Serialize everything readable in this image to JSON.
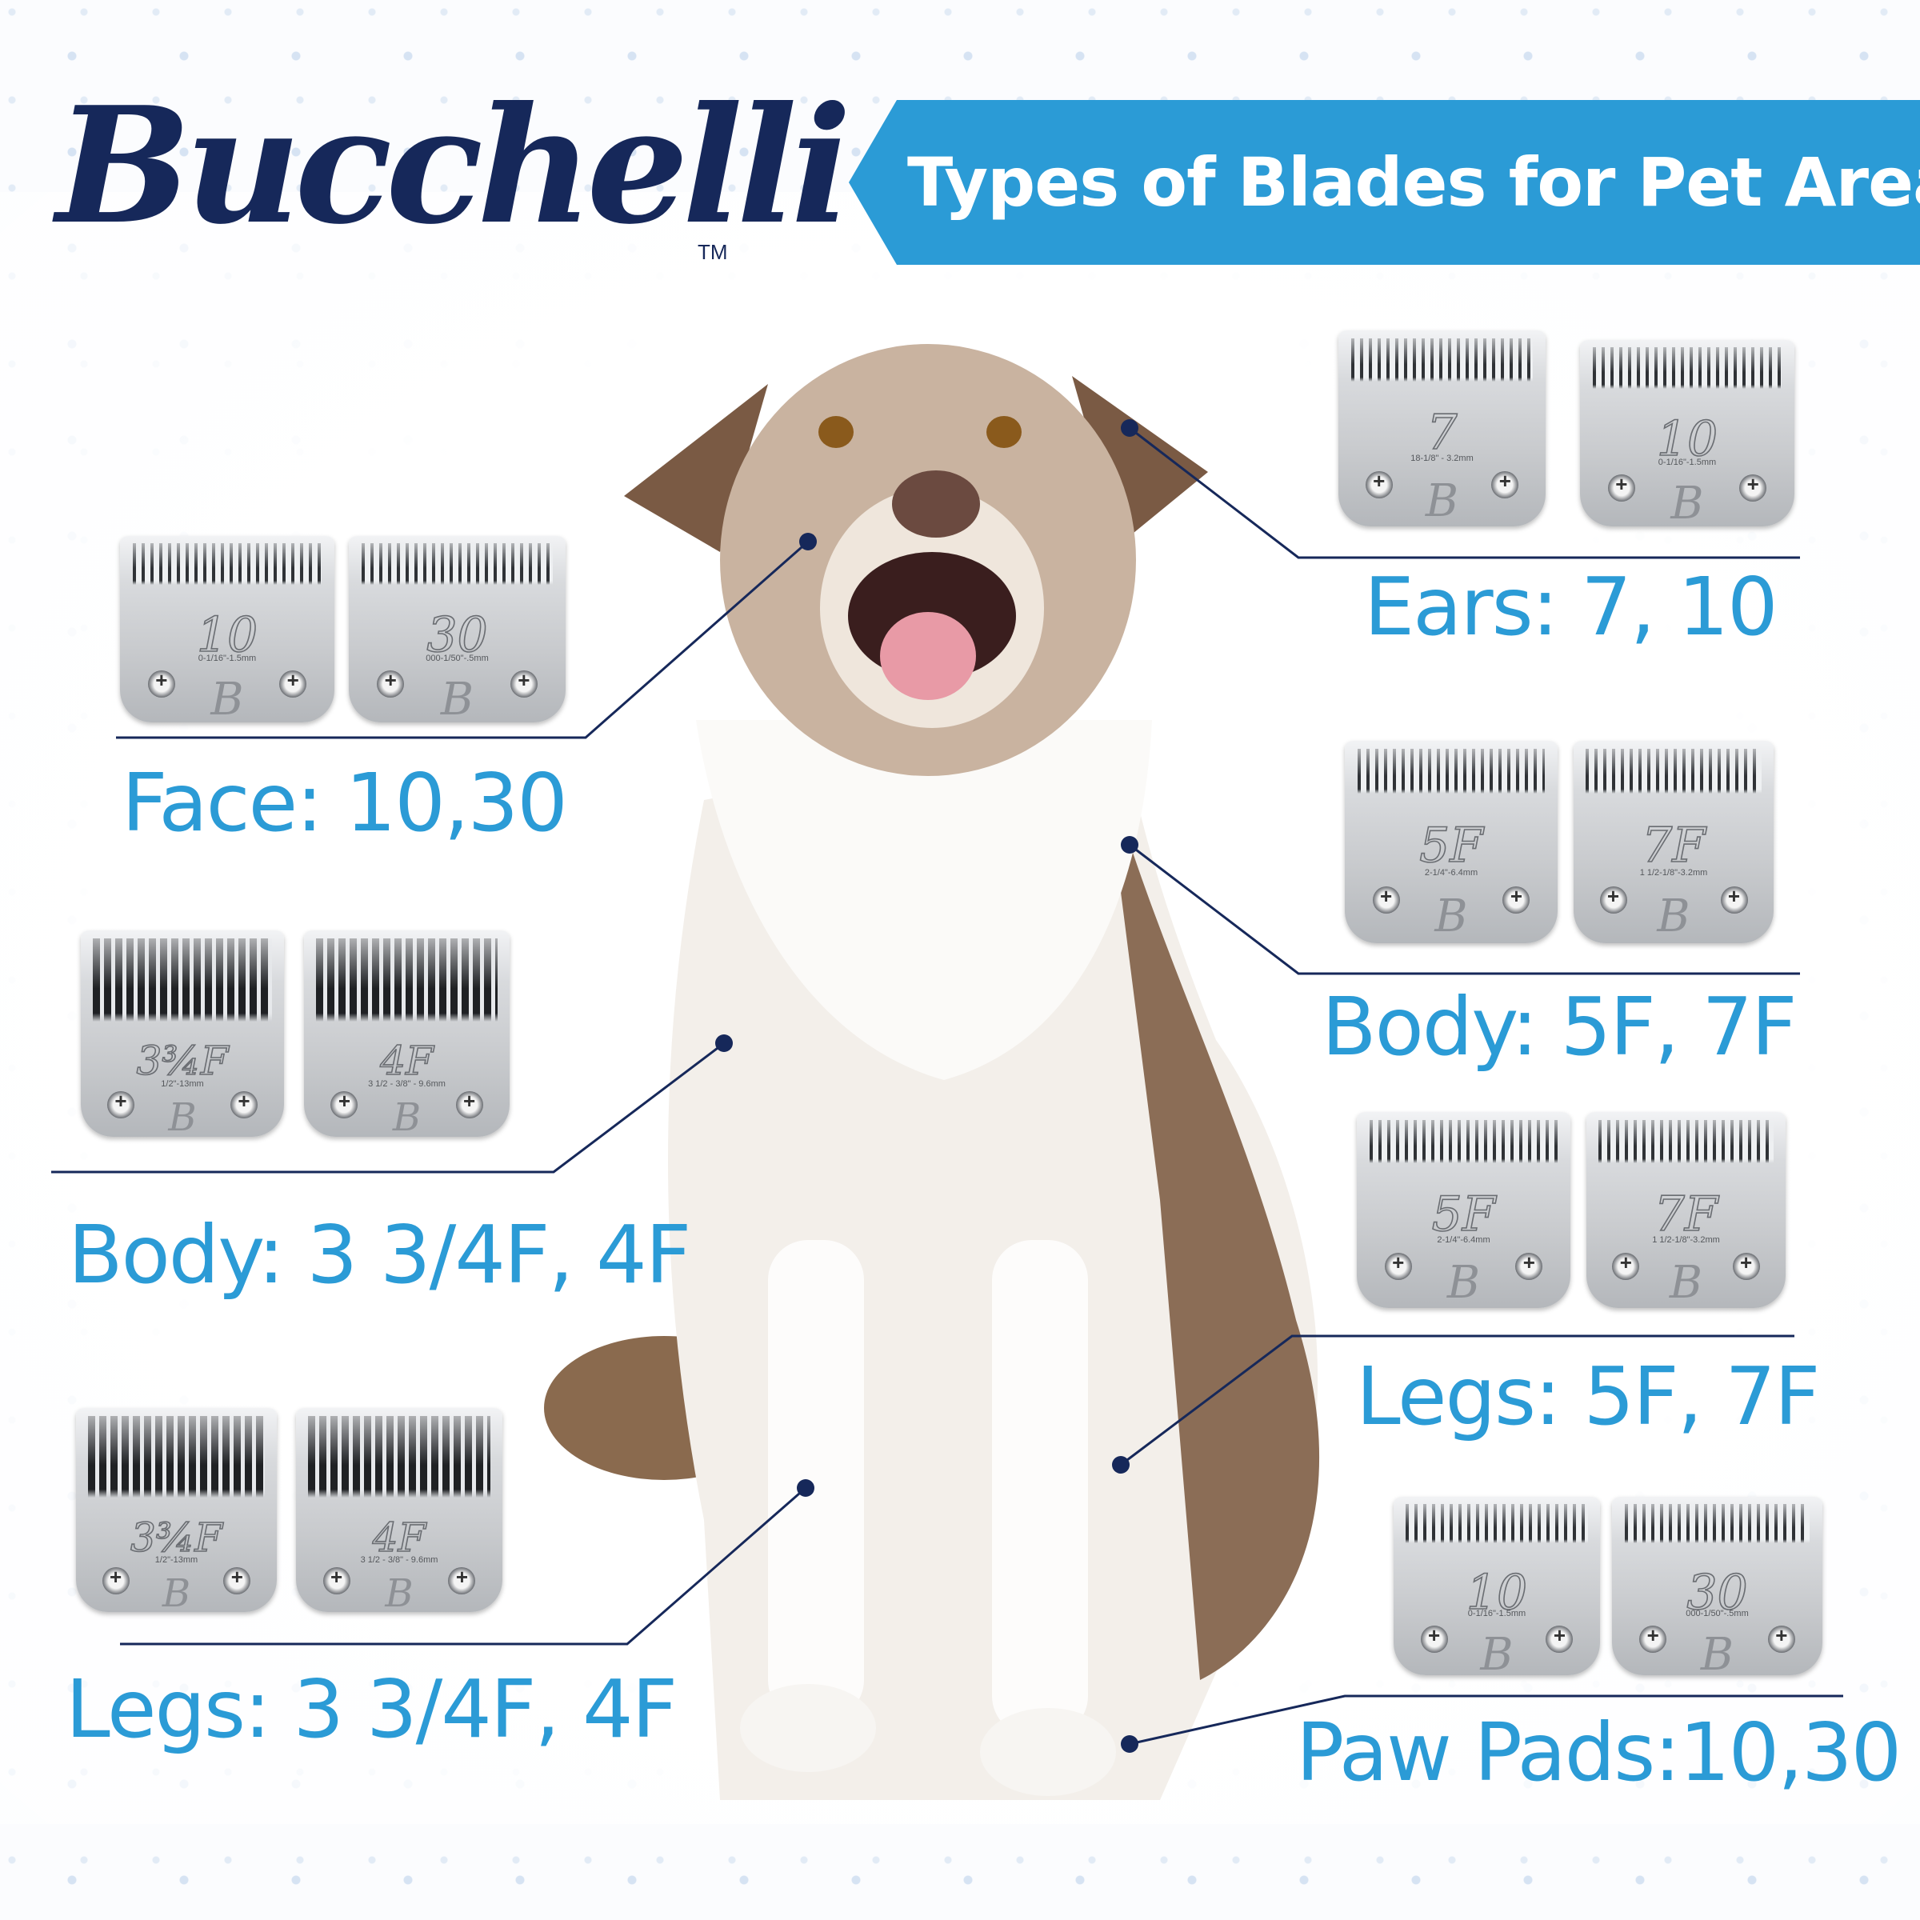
{
  "brand": {
    "logo_text": "Bucchelli",
    "trademark": "TM",
    "color": "#16285a"
  },
  "banner": {
    "title": "Types of Blades for Pet Areas",
    "color": "#2b9bd6"
  },
  "label_color": "#2b9bd6",
  "line_color": "#16285a",
  "areas": [
    {
      "id": "ears",
      "label": "Ears: 7, 10",
      "blades": [
        {
          "number": "7",
          "spec": "18-1/8\" - 3.2mm"
        },
        {
          "number": "10",
          "spec": "0-1/16\"-1.5mm"
        }
      ]
    },
    {
      "id": "face",
      "label": "Face: 10,30",
      "blades": [
        {
          "number": "10",
          "spec": "0-1/16\"-1.5mm"
        },
        {
          "number": "30",
          "spec": "000-1/50\"-.5mm"
        }
      ]
    },
    {
      "id": "body-right",
      "label": "Body: 5F, 7F",
      "blades": [
        {
          "number": "5F",
          "spec": "2-1/4\"-6.4mm"
        },
        {
          "number": "7F",
          "spec": "1 1/2-1/8\"-3.2mm"
        }
      ]
    },
    {
      "id": "body-left",
      "label": "Body: 3 3/4F, 4F",
      "blades": [
        {
          "number": "3¾F",
          "spec": "1/2\"-13mm"
        },
        {
          "number": "4F",
          "spec": "3 1/2 - 3/8\" - 9.6mm"
        }
      ]
    },
    {
      "id": "legs-right",
      "label": "Legs: 5F, 7F",
      "blades": [
        {
          "number": "5F",
          "spec": "2-1/4\"-6.4mm"
        },
        {
          "number": "7F",
          "spec": "1 1/2-1/8\"-3.2mm"
        }
      ]
    },
    {
      "id": "legs-left",
      "label": "Legs: 3 3/4F, 4F",
      "blades": [
        {
          "number": "3¾F",
          "spec": "1/2\"-13mm"
        },
        {
          "number": "4F",
          "spec": "3 1/2 - 3/8\" - 9.6mm"
        }
      ]
    },
    {
      "id": "paw-pads",
      "label": "Paw Pads:10,30",
      "blades": [
        {
          "number": "10",
          "spec": "0-1/16\"-1.5mm"
        },
        {
          "number": "30",
          "spec": "000-1/50\"-.5mm"
        }
      ]
    }
  ]
}
